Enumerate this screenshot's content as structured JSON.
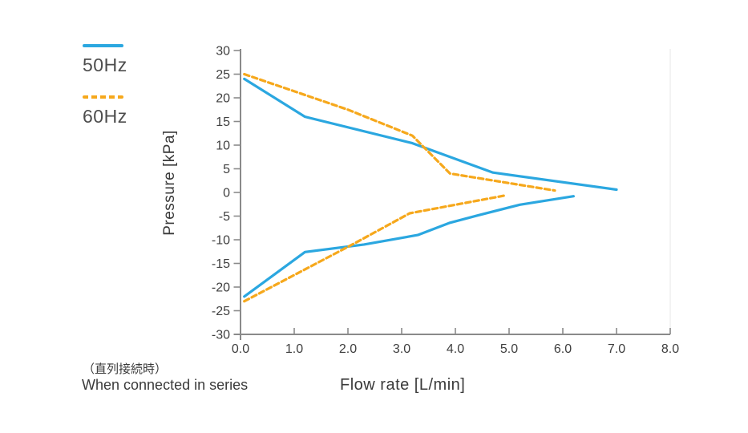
{
  "legend": {
    "items": [
      {
        "label": "50Hz",
        "style": "solid"
      },
      {
        "label": "60Hz",
        "style": "dashed"
      }
    ]
  },
  "notes": {
    "jp": "（直列接続時）",
    "en": "When connected in series"
  },
  "colors": {
    "blue": "#2BA7E0",
    "orange": "#F6A81C",
    "axis": "#8A8A8A",
    "tick_text": "#3F3F3F",
    "label_text": "#3A3A3A",
    "plot_border": "#EBEBEB"
  },
  "chart_data": {
    "type": "line",
    "title": "",
    "xlabel": "Flow rate [L/min]",
    "ylabel": "Pressure [kPa]",
    "xlim": [
      0,
      8
    ],
    "ylim": [
      -30,
      30
    ],
    "grid": false,
    "legend_position": "outside-upper-left",
    "x_tick_values": [
      0,
      1,
      2,
      3,
      4,
      5,
      6,
      7,
      8
    ],
    "x_tick_labels": [
      "0.0",
      "1.0",
      "2.0",
      "3.0",
      "4.0",
      "5.0",
      "6.0",
      "7.0",
      "8.0"
    ],
    "y_tick_values": [
      30,
      25,
      20,
      15,
      10,
      5,
      0,
      -5,
      -10,
      -15,
      -20,
      -25,
      -30
    ],
    "y_tick_labels": [
      "30",
      "25",
      "20",
      "15",
      "10",
      "5",
      "0",
      "-5",
      "-10",
      "-15",
      "-20",
      "-25",
      "-30"
    ],
    "series": [
      {
        "name": "50Hz",
        "color": "#2BA7E0",
        "line_style": "solid",
        "branches": [
          {
            "name": "positive-pressure",
            "points": [
              [
                0.07,
                24
              ],
              [
                1.2,
                16
              ],
              [
                3.2,
                10.4
              ],
              [
                4.7,
                4.2
              ],
              [
                7.0,
                0.6
              ]
            ]
          },
          {
            "name": "negative-pressure",
            "points": [
              [
                0.07,
                -22
              ],
              [
                1.2,
                -12.6
              ],
              [
                2.3,
                -11.0
              ],
              [
                3.3,
                -9.0
              ],
              [
                3.9,
                -6.4
              ],
              [
                4.4,
                -4.9
              ],
              [
                5.2,
                -2.6
              ],
              [
                6.2,
                -0.8
              ]
            ]
          }
        ]
      },
      {
        "name": "60Hz",
        "color": "#F6A81C",
        "line_style": "dashed",
        "branches": [
          {
            "name": "positive-pressure",
            "points": [
              [
                0.07,
                25
              ],
              [
                2.0,
                17.5
              ],
              [
                3.2,
                12.0
              ],
              [
                3.9,
                4.0
              ],
              [
                5.85,
                0.4
              ]
            ]
          },
          {
            "name": "negative-pressure",
            "points": [
              [
                0.07,
                -23
              ],
              [
                2.1,
                -10.9
              ],
              [
                3.15,
                -4.4
              ],
              [
                4.9,
                -0.7
              ]
            ]
          }
        ]
      }
    ]
  }
}
